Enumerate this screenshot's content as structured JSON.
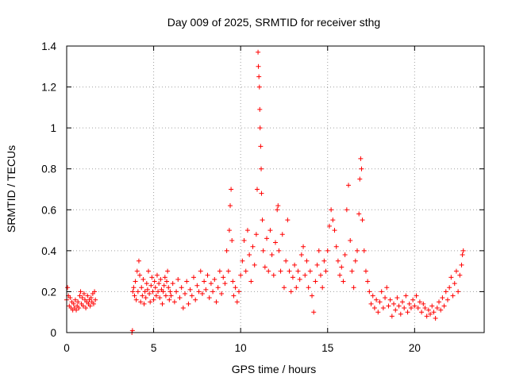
{
  "chart_data": {
    "type": "scatter",
    "title": "Day 009 of 2025, SRMTID for receiver sthg",
    "xlabel": "GPS time / hours",
    "ylabel": "SRMTID / TECUs",
    "xlim": [
      0,
      24
    ],
    "ylim": [
      0,
      1.4
    ],
    "xticks": [
      0,
      5,
      10,
      15,
      20
    ],
    "xtick_labels": [
      "0",
      "5",
      "10",
      "15",
      "20"
    ],
    "yticks": [
      0,
      0.2,
      0.4,
      0.6,
      0.8,
      1.0,
      1.2,
      1.4
    ],
    "ytick_labels": [
      "0",
      "0.2",
      "0.4",
      "0.6",
      "0.8",
      "1",
      "1.2",
      "1.4"
    ],
    "grid": true,
    "marker": "+",
    "color": "#ff0000",
    "series": [
      {
        "name": "SRMTID",
        "points": [
          [
            0.0,
            0.16
          ],
          [
            0.05,
            0.22
          ],
          [
            0.1,
            0.18
          ],
          [
            0.15,
            0.13
          ],
          [
            0.2,
            0.17
          ],
          [
            0.25,
            0.12
          ],
          [
            0.3,
            0.15
          ],
          [
            0.35,
            0.11
          ],
          [
            0.4,
            0.14
          ],
          [
            0.45,
            0.12
          ],
          [
            0.5,
            0.16
          ],
          [
            0.55,
            0.11
          ],
          [
            0.6,
            0.13
          ],
          [
            0.65,
            0.15
          ],
          [
            0.7,
            0.12
          ],
          [
            0.75,
            0.18
          ],
          [
            0.8,
            0.2
          ],
          [
            0.85,
            0.14
          ],
          [
            0.9,
            0.17
          ],
          [
            0.95,
            0.13
          ],
          [
            1.0,
            0.19
          ],
          [
            1.05,
            0.16
          ],
          [
            1.1,
            0.12
          ],
          [
            1.15,
            0.15
          ],
          [
            1.2,
            0.18
          ],
          [
            1.25,
            0.14
          ],
          [
            1.3,
            0.16
          ],
          [
            1.35,
            0.13
          ],
          [
            1.4,
            0.17
          ],
          [
            1.45,
            0.15
          ],
          [
            1.5,
            0.19
          ],
          [
            1.55,
            0.14
          ],
          [
            1.6,
            0.2
          ],
          [
            1.65,
            0.16
          ],
          [
            3.75,
            0.0
          ],
          [
            3.78,
            0.01
          ],
          [
            3.8,
            0.2
          ],
          [
            3.85,
            0.22
          ],
          [
            3.9,
            0.18
          ],
          [
            3.95,
            0.25
          ],
          [
            4.0,
            0.16
          ],
          [
            4.05,
            0.3
          ],
          [
            4.1,
            0.2
          ],
          [
            4.15,
            0.35
          ],
          [
            4.2,
            0.28
          ],
          [
            4.25,
            0.15
          ],
          [
            4.3,
            0.22
          ],
          [
            4.35,
            0.18
          ],
          [
            4.4,
            0.26
          ],
          [
            4.45,
            0.14
          ],
          [
            4.5,
            0.2
          ],
          [
            4.55,
            0.17
          ],
          [
            4.6,
            0.24
          ],
          [
            4.65,
            0.21
          ],
          [
            4.7,
            0.3
          ],
          [
            4.75,
            0.19
          ],
          [
            4.8,
            0.15
          ],
          [
            4.85,
            0.23
          ],
          [
            4.9,
            0.27
          ],
          [
            4.95,
            0.2
          ],
          [
            5.0,
            0.16
          ],
          [
            5.05,
            0.25
          ],
          [
            5.1,
            0.22
          ],
          [
            5.15,
            0.18
          ],
          [
            5.2,
            0.28
          ],
          [
            5.25,
            0.2
          ],
          [
            5.3,
            0.24
          ],
          [
            5.35,
            0.17
          ],
          [
            5.4,
            0.26
          ],
          [
            5.45,
            0.21
          ],
          [
            5.5,
            0.14
          ],
          [
            5.55,
            0.2
          ],
          [
            5.6,
            0.23
          ],
          [
            5.65,
            0.27
          ],
          [
            5.7,
            0.18
          ],
          [
            5.75,
            0.25
          ],
          [
            5.8,
            0.3
          ],
          [
            5.85,
            0.22
          ],
          [
            5.9,
            0.16
          ],
          [
            5.95,
            0.2
          ],
          [
            6.0,
            0.18
          ],
          [
            6.1,
            0.24
          ],
          [
            6.2,
            0.15
          ],
          [
            6.3,
            0.2
          ],
          [
            6.4,
            0.26
          ],
          [
            6.5,
            0.17
          ],
          [
            6.6,
            0.22
          ],
          [
            6.7,
            0.12
          ],
          [
            6.8,
            0.19
          ],
          [
            6.9,
            0.25
          ],
          [
            7.0,
            0.14
          ],
          [
            7.1,
            0.21
          ],
          [
            7.2,
            0.18
          ],
          [
            7.3,
            0.27
          ],
          [
            7.4,
            0.16
          ],
          [
            7.5,
            0.23
          ],
          [
            7.6,
            0.2
          ],
          [
            7.7,
            0.3
          ],
          [
            7.8,
            0.19
          ],
          [
            7.9,
            0.25
          ],
          [
            8.0,
            0.21
          ],
          [
            8.1,
            0.28
          ],
          [
            8.2,
            0.17
          ],
          [
            8.3,
            0.24
          ],
          [
            8.4,
            0.2
          ],
          [
            8.5,
            0.26
          ],
          [
            8.6,
            0.15
          ],
          [
            8.7,
            0.22
          ],
          [
            8.8,
            0.3
          ],
          [
            8.9,
            0.19
          ],
          [
            9.0,
            0.27
          ],
          [
            9.1,
            0.24
          ],
          [
            9.2,
            0.4
          ],
          [
            9.3,
            0.3
          ],
          [
            9.35,
            0.5
          ],
          [
            9.4,
            0.62
          ],
          [
            9.45,
            0.7
          ],
          [
            9.5,
            0.45
          ],
          [
            9.55,
            0.25
          ],
          [
            9.6,
            0.18
          ],
          [
            9.7,
            0.22
          ],
          [
            9.8,
            0.15
          ],
          [
            9.9,
            0.2
          ],
          [
            10.0,
            0.28
          ],
          [
            10.1,
            0.35
          ],
          [
            10.2,
            0.45
          ],
          [
            10.3,
            0.3
          ],
          [
            10.4,
            0.5
          ],
          [
            10.5,
            0.38
          ],
          [
            10.6,
            0.25
          ],
          [
            10.7,
            0.42
          ],
          [
            10.8,
            0.33
          ],
          [
            10.9,
            0.48
          ],
          [
            10.95,
            0.7
          ],
          [
            11.0,
            1.37
          ],
          [
            11.02,
            1.3
          ],
          [
            11.05,
            1.25
          ],
          [
            11.08,
            1.2
          ],
          [
            11.1,
            1.09
          ],
          [
            11.12,
            1.0
          ],
          [
            11.15,
            0.91
          ],
          [
            11.18,
            0.8
          ],
          [
            11.2,
            0.68
          ],
          [
            11.25,
            0.55
          ],
          [
            11.3,
            0.4
          ],
          [
            11.4,
            0.32
          ],
          [
            11.5,
            0.46
          ],
          [
            11.6,
            0.3
          ],
          [
            11.7,
            0.5
          ],
          [
            11.8,
            0.38
          ],
          [
            11.9,
            0.28
          ],
          [
            12.0,
            0.44
          ],
          [
            12.1,
            0.6
          ],
          [
            12.15,
            0.62
          ],
          [
            12.2,
            0.4
          ],
          [
            12.3,
            0.3
          ],
          [
            12.4,
            0.48
          ],
          [
            12.5,
            0.22
          ],
          [
            12.6,
            0.35
          ],
          [
            12.7,
            0.55
          ],
          [
            12.8,
            0.3
          ],
          [
            12.9,
            0.2
          ],
          [
            13.0,
            0.27
          ],
          [
            13.1,
            0.33
          ],
          [
            13.2,
            0.22
          ],
          [
            13.3,
            0.3
          ],
          [
            13.4,
            0.26
          ],
          [
            13.5,
            0.38
          ],
          [
            13.6,
            0.42
          ],
          [
            13.7,
            0.28
          ],
          [
            13.8,
            0.35
          ],
          [
            13.9,
            0.22
          ],
          [
            14.0,
            0.3
          ],
          [
            14.1,
            0.18
          ],
          [
            14.2,
            0.1
          ],
          [
            14.3,
            0.25
          ],
          [
            14.4,
            0.33
          ],
          [
            14.5,
            0.4
          ],
          [
            14.6,
            0.28
          ],
          [
            14.7,
            0.22
          ],
          [
            14.8,
            0.35
          ],
          [
            14.9,
            0.3
          ],
          [
            15.0,
            0.4
          ],
          [
            15.1,
            0.52
          ],
          [
            15.2,
            0.6
          ],
          [
            15.3,
            0.55
          ],
          [
            15.4,
            0.5
          ],
          [
            15.5,
            0.42
          ],
          [
            15.6,
            0.35
          ],
          [
            15.7,
            0.28
          ],
          [
            15.8,
            0.32
          ],
          [
            15.9,
            0.25
          ],
          [
            16.0,
            0.38
          ],
          [
            16.1,
            0.6
          ],
          [
            16.2,
            0.72
          ],
          [
            16.3,
            0.45
          ],
          [
            16.4,
            0.3
          ],
          [
            16.5,
            0.22
          ],
          [
            16.6,
            0.35
          ],
          [
            16.7,
            0.4
          ],
          [
            16.8,
            0.58
          ],
          [
            16.85,
            0.75
          ],
          [
            16.9,
            0.85
          ],
          [
            16.95,
            0.8
          ],
          [
            17.0,
            0.55
          ],
          [
            17.1,
            0.4
          ],
          [
            17.2,
            0.3
          ],
          [
            17.3,
            0.25
          ],
          [
            17.4,
            0.2
          ],
          [
            17.5,
            0.14
          ],
          [
            17.6,
            0.18
          ],
          [
            17.7,
            0.12
          ],
          [
            17.8,
            0.16
          ],
          [
            17.9,
            0.1
          ],
          [
            18.0,
            0.15
          ],
          [
            18.1,
            0.2
          ],
          [
            18.2,
            0.12
          ],
          [
            18.3,
            0.17
          ],
          [
            18.4,
            0.22
          ],
          [
            18.5,
            0.13
          ],
          [
            18.6,
            0.16
          ],
          [
            18.7,
            0.08
          ],
          [
            18.8,
            0.14
          ],
          [
            18.9,
            0.11
          ],
          [
            19.0,
            0.17
          ],
          [
            19.1,
            0.13
          ],
          [
            19.2,
            0.09
          ],
          [
            19.3,
            0.15
          ],
          [
            19.4,
            0.12
          ],
          [
            19.5,
            0.18
          ],
          [
            19.6,
            0.1
          ],
          [
            19.7,
            0.14
          ],
          [
            19.8,
            0.12
          ],
          [
            19.9,
            0.16
          ],
          [
            20.0,
            0.13
          ],
          [
            20.1,
            0.18
          ],
          [
            20.2,
            0.12
          ],
          [
            20.3,
            0.15
          ],
          [
            20.4,
            0.1
          ],
          [
            20.5,
            0.14
          ],
          [
            20.6,
            0.12
          ],
          [
            20.7,
            0.08
          ],
          [
            20.8,
            0.11
          ],
          [
            20.9,
            0.09
          ],
          [
            21.0,
            0.13
          ],
          [
            21.1,
            0.1
          ],
          [
            21.2,
            0.07
          ],
          [
            21.3,
            0.12
          ],
          [
            21.4,
            0.15
          ],
          [
            21.5,
            0.11
          ],
          [
            21.6,
            0.17
          ],
          [
            21.7,
            0.13
          ],
          [
            21.8,
            0.2
          ],
          [
            21.9,
            0.16
          ],
          [
            22.0,
            0.22
          ],
          [
            22.1,
            0.27
          ],
          [
            22.2,
            0.18
          ],
          [
            22.3,
            0.24
          ],
          [
            22.4,
            0.3
          ],
          [
            22.5,
            0.2
          ],
          [
            22.6,
            0.28
          ],
          [
            22.7,
            0.33
          ],
          [
            22.75,
            0.38
          ],
          [
            22.8,
            0.4
          ]
        ]
      }
    ]
  }
}
